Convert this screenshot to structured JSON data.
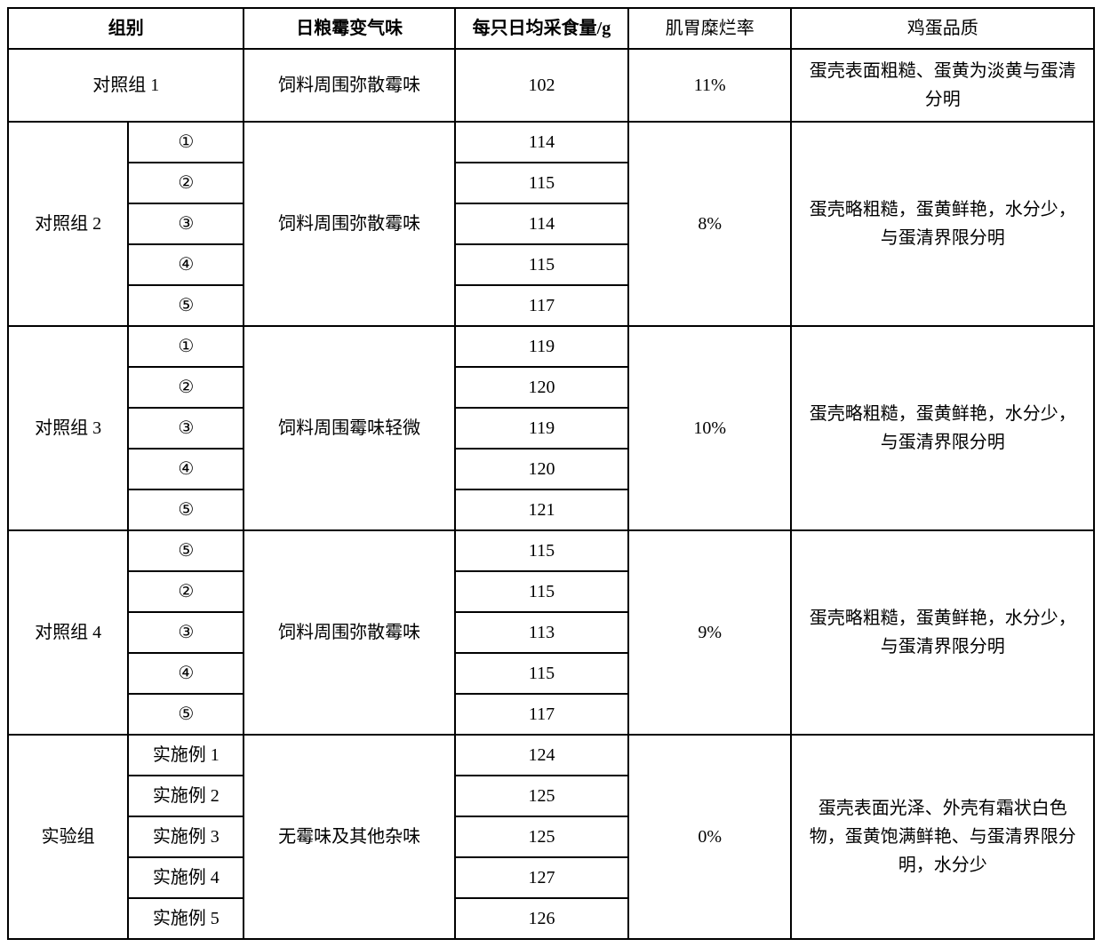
{
  "headers": {
    "group": "组别",
    "odor": "日粮霉变气味",
    "feed": "每只日均采食量/g",
    "erosion": "肌胃糜烂率",
    "quality": "鸡蛋品质"
  },
  "rows": {
    "control1": {
      "name": "对照组 1",
      "odor": "饲料周围弥散霉味",
      "feed": "102",
      "erosion": "11%",
      "quality": "蛋壳表面粗糙、蛋黄为淡黄与蛋清分明"
    },
    "control2": {
      "name": "对照组 2",
      "subs": [
        "①",
        "②",
        "③",
        "④",
        "⑤"
      ],
      "odor": "饲料周围弥散霉味",
      "feeds": [
        "114",
        "115",
        "114",
        "115",
        "117"
      ],
      "erosion": "8%",
      "quality": "蛋壳略粗糙，蛋黄鲜艳，水分少，与蛋清界限分明"
    },
    "control3": {
      "name": "对照组 3",
      "subs": [
        "①",
        "②",
        "③",
        "④",
        "⑤"
      ],
      "odor": "饲料周围霉味轻微",
      "feeds": [
        "119",
        "120",
        "119",
        "120",
        "121"
      ],
      "erosion": "10%",
      "quality": "蛋壳略粗糙，蛋黄鲜艳，水分少，与蛋清界限分明"
    },
    "control4": {
      "name": "对照组 4",
      "subs": [
        "⑤",
        "②",
        "③",
        "④",
        "⑤"
      ],
      "odor": "饲料周围弥散霉味",
      "feeds": [
        "115",
        "115",
        "113",
        "115",
        "117"
      ],
      "erosion": "9%",
      "quality": "蛋壳略粗糙，蛋黄鲜艳，水分少，与蛋清界限分明"
    },
    "experiment": {
      "name": "实验组",
      "subs": [
        "实施例 1",
        "实施例 2",
        "实施例 3",
        "实施例 4",
        "实施例 5"
      ],
      "odor": "无霉味及其他杂味",
      "feeds": [
        "124",
        "125",
        "125",
        "127",
        "126"
      ],
      "erosion": "0%",
      "quality": "蛋壳表面光泽、外壳有霜状白色物，蛋黄饱满鲜艳、与蛋清界限分明，水分少"
    }
  }
}
